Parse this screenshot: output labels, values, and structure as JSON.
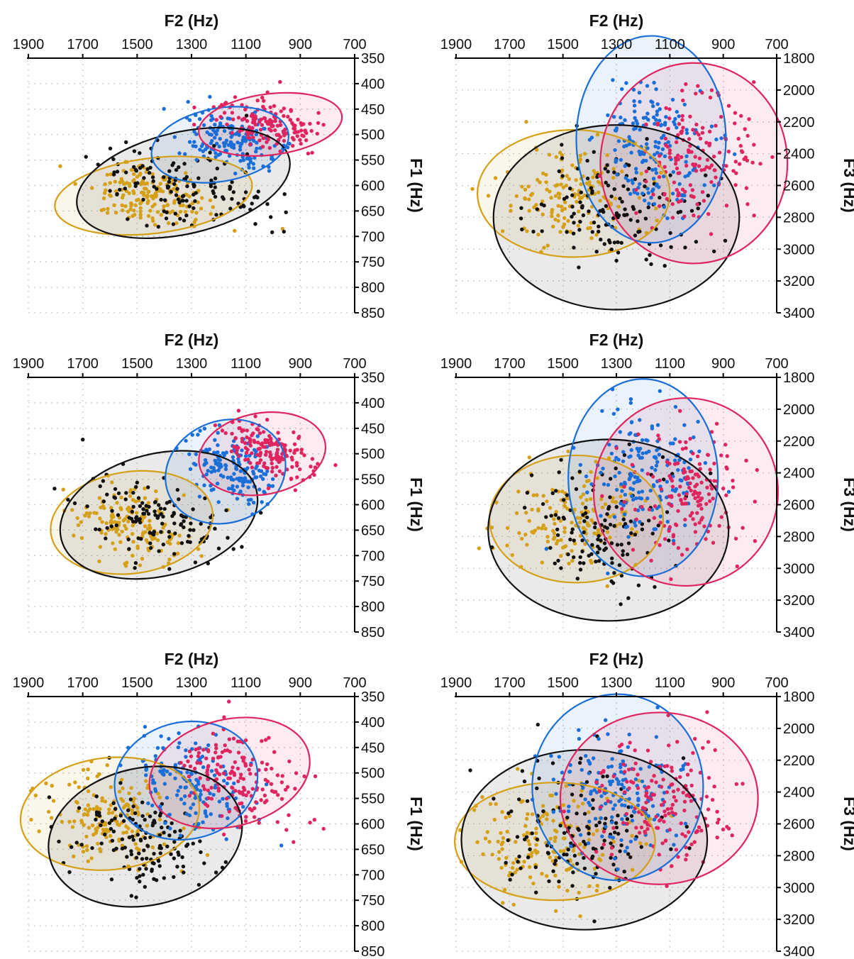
{
  "figure": {
    "rows": 3,
    "cols": 2
  },
  "series_colors": {
    "black": "#111111",
    "orange": "#D4A017",
    "blue": "#1A6ED8",
    "red": "#E0245E"
  },
  "series_order": [
    "orange",
    "black",
    "blue",
    "red"
  ],
  "chart_data": [
    {
      "type": "scatter",
      "xlabel": "F2 (Hz)",
      "ylabel": "F1 (Hz)",
      "xlim": [
        1900,
        700
      ],
      "ylim": [
        350,
        850
      ],
      "xticks": [
        1900,
        1700,
        1500,
        1300,
        1100,
        900,
        700
      ],
      "yticks": [
        350,
        400,
        450,
        500,
        550,
        600,
        650,
        700,
        750,
        800,
        850
      ],
      "grid": true,
      "series": [
        {
          "color_key": "orange",
          "ellipse": {
            "cx": 1440,
            "cy": 620,
            "rx": 365,
            "ry": 74,
            "angle": -7
          },
          "mean_x": 1450,
          "sd_x": 120,
          "mean_y": 620,
          "sd_y": 35,
          "spread_tilt": 0.35,
          "n": 170
        },
        {
          "color_key": "black",
          "ellipse": {
            "cx": 1330,
            "cy": 595,
            "rx": 400,
            "ry": 100,
            "angle": -13
          },
          "mean_x": 1330,
          "sd_x": 150,
          "mean_y": 600,
          "sd_y": 45,
          "spread_tilt": 0.45,
          "n": 140
        },
        {
          "color_key": "blue",
          "ellipse": {
            "cx": 1195,
            "cy": 520,
            "rx": 255,
            "ry": 72,
            "angle": -10
          },
          "mean_x": 1150,
          "sd_x": 90,
          "mean_y": 510,
          "sd_y": 28,
          "spread_tilt": 0.4,
          "n": 170
        },
        {
          "color_key": "red",
          "ellipse": {
            "cx": 1010,
            "cy": 480,
            "rx": 265,
            "ry": 60,
            "angle": -7
          },
          "mean_x": 1020,
          "sd_x": 90,
          "mean_y": 480,
          "sd_y": 25,
          "spread_tilt": 0.4,
          "n": 150
        }
      ]
    },
    {
      "type": "scatter",
      "xlabel": "F2 (Hz)",
      "ylabel": "F3 (Hz)",
      "xlim": [
        1900,
        700
      ],
      "ylim": [
        1800,
        3400
      ],
      "xticks": [
        1900,
        1700,
        1500,
        1300,
        1100,
        900,
        700
      ],
      "yticks": [
        1800,
        2000,
        2200,
        2400,
        2600,
        2800,
        3000,
        3200,
        3400
      ],
      "grid": true,
      "series": [
        {
          "color_key": "orange",
          "ellipse": {
            "cx": 1460,
            "cy": 2650,
            "rx": 360,
            "ry": 400,
            "angle": 0
          },
          "mean_x": 1460,
          "sd_x": 130,
          "mean_y": 2650,
          "sd_y": 150,
          "spread_tilt": 0.0,
          "n": 160
        },
        {
          "color_key": "black",
          "ellipse": {
            "cx": 1300,
            "cy": 2800,
            "rx": 460,
            "ry": 580,
            "angle": 0
          },
          "mean_x": 1300,
          "sd_x": 160,
          "mean_y": 2750,
          "sd_y": 200,
          "spread_tilt": 0.0,
          "n": 140
        },
        {
          "color_key": "blue",
          "ellipse": {
            "cx": 1170,
            "cy": 2310,
            "rx": 280,
            "ry": 650,
            "angle": 0
          },
          "mean_x": 1170,
          "sd_x": 100,
          "mean_y": 2350,
          "sd_y": 220,
          "spread_tilt": 0.0,
          "n": 170
        },
        {
          "color_key": "red",
          "ellipse": {
            "cx": 1010,
            "cy": 2460,
            "rx": 350,
            "ry": 630,
            "angle": 0
          },
          "mean_x": 1010,
          "sd_x": 110,
          "mean_y": 2450,
          "sd_y": 210,
          "spread_tilt": 0.0,
          "n": 160
        }
      ]
    },
    {
      "type": "scatter",
      "xlabel": "F2 (Hz)",
      "ylabel": "F1 (Hz)",
      "xlim": [
        1900,
        700
      ],
      "ylim": [
        350,
        850
      ],
      "xticks": [
        1900,
        1700,
        1500,
        1300,
        1100,
        900,
        700
      ],
      "yticks": [
        350,
        400,
        450,
        500,
        550,
        600,
        650,
        700,
        750,
        800,
        850
      ],
      "grid": true,
      "series": [
        {
          "color_key": "orange",
          "ellipse": {
            "cx": 1520,
            "cy": 635,
            "rx": 300,
            "ry": 100,
            "angle": -8
          },
          "mean_x": 1520,
          "sd_x": 110,
          "mean_y": 640,
          "sd_y": 35,
          "spread_tilt": 0.35,
          "n": 160
        },
        {
          "color_key": "black",
          "ellipse": {
            "cx": 1420,
            "cy": 620,
            "rx": 370,
            "ry": 120,
            "angle": -14
          },
          "mean_x": 1430,
          "sd_x": 130,
          "mean_y": 630,
          "sd_y": 45,
          "spread_tilt": 0.45,
          "n": 130
        },
        {
          "color_key": "blue",
          "ellipse": {
            "cx": 1175,
            "cy": 535,
            "rx": 225,
            "ry": 100,
            "angle": -20
          },
          "mean_x": 1150,
          "sd_x": 80,
          "mean_y": 530,
          "sd_y": 35,
          "spread_tilt": 0.45,
          "n": 160
        },
        {
          "color_key": "red",
          "ellipse": {
            "cx": 1040,
            "cy": 500,
            "rx": 235,
            "ry": 80,
            "angle": -10
          },
          "mean_x": 1010,
          "sd_x": 80,
          "mean_y": 495,
          "sd_y": 28,
          "spread_tilt": 0.4,
          "n": 160
        }
      ]
    },
    {
      "type": "scatter",
      "xlabel": "F2 (Hz)",
      "ylabel": "F3 (Hz)",
      "xlim": [
        1900,
        700
      ],
      "ylim": [
        1800,
        3400
      ],
      "xticks": [
        1900,
        1700,
        1500,
        1300,
        1100,
        900,
        700
      ],
      "yticks": [
        1800,
        2000,
        2200,
        2400,
        2600,
        2800,
        3000,
        3200,
        3400
      ],
      "grid": true,
      "series": [
        {
          "color_key": "orange",
          "ellipse": {
            "cx": 1450,
            "cy": 2690,
            "rx": 325,
            "ry": 400,
            "angle": 0
          },
          "mean_x": 1470,
          "sd_x": 120,
          "mean_y": 2700,
          "sd_y": 150,
          "spread_tilt": 0.0,
          "n": 160
        },
        {
          "color_key": "black",
          "ellipse": {
            "cx": 1330,
            "cy": 2760,
            "rx": 450,
            "ry": 570,
            "angle": 0
          },
          "mean_x": 1350,
          "sd_x": 150,
          "mean_y": 2750,
          "sd_y": 200,
          "spread_tilt": 0.0,
          "n": 130
        },
        {
          "color_key": "blue",
          "ellipse": {
            "cx": 1200,
            "cy": 2430,
            "rx": 280,
            "ry": 620,
            "angle": 0
          },
          "mean_x": 1200,
          "sd_x": 100,
          "mean_y": 2420,
          "sd_y": 210,
          "spread_tilt": 0.0,
          "n": 170
        },
        {
          "color_key": "red",
          "ellipse": {
            "cx": 1040,
            "cy": 2520,
            "rx": 345,
            "ry": 590,
            "angle": 0
          },
          "mean_x": 1020,
          "sd_x": 110,
          "mean_y": 2510,
          "sd_y": 200,
          "spread_tilt": 0.0,
          "n": 160
        }
      ]
    },
    {
      "type": "scatter",
      "xlabel": "F2 (Hz)",
      "ylabel": "F1 (Hz)",
      "xlim": [
        1900,
        700
      ],
      "ylim": [
        350,
        850
      ],
      "xticks": [
        1900,
        1700,
        1500,
        1300,
        1100,
        900,
        700
      ],
      "yticks": [
        350,
        400,
        450,
        500,
        550,
        600,
        650,
        700,
        750,
        800,
        850
      ],
      "grid": true,
      "series": [
        {
          "color_key": "orange",
          "ellipse": {
            "cx": 1600,
            "cy": 580,
            "rx": 330,
            "ry": 110,
            "angle": -6
          },
          "mean_x": 1600,
          "sd_x": 130,
          "mean_y": 590,
          "sd_y": 45,
          "spread_tilt": 0.3,
          "n": 170
        },
        {
          "color_key": "black",
          "ellipse": {
            "cx": 1470,
            "cy": 625,
            "rx": 360,
            "ry": 135,
            "angle": -12
          },
          "mean_x": 1480,
          "sd_x": 140,
          "mean_y": 630,
          "sd_y": 50,
          "spread_tilt": 0.4,
          "n": 140
        },
        {
          "color_key": "blue",
          "ellipse": {
            "cx": 1320,
            "cy": 515,
            "rx": 265,
            "ry": 115,
            "angle": -12
          },
          "mean_x": 1300,
          "sd_x": 110,
          "mean_y": 520,
          "sd_y": 45,
          "spread_tilt": 0.4,
          "n": 160
        },
        {
          "color_key": "red",
          "ellipse": {
            "cx": 1160,
            "cy": 500,
            "rx": 300,
            "ry": 105,
            "angle": -14
          },
          "mean_x": 1140,
          "sd_x": 110,
          "mean_y": 505,
          "sd_y": 45,
          "spread_tilt": 0.4,
          "n": 170
        }
      ]
    },
    {
      "type": "scatter",
      "xlabel": "F2 (Hz)",
      "ylabel": "F3 (Hz)",
      "xlim": [
        1900,
        700
      ],
      "ylim": [
        1800,
        3400
      ],
      "xticks": [
        1900,
        1700,
        1500,
        1300,
        1100,
        900,
        700
      ],
      "yticks": [
        1800,
        2000,
        2200,
        2400,
        2600,
        2800,
        3000,
        3200,
        3400
      ],
      "grid": true,
      "series": [
        {
          "color_key": "orange",
          "ellipse": {
            "cx": 1530,
            "cy": 2710,
            "rx": 375,
            "ry": 370,
            "angle": 0
          },
          "mean_x": 1560,
          "sd_x": 140,
          "mean_y": 2700,
          "sd_y": 160,
          "spread_tilt": 0.0,
          "n": 170
        },
        {
          "color_key": "black",
          "ellipse": {
            "cx": 1420,
            "cy": 2700,
            "rx": 460,
            "ry": 565,
            "angle": 0
          },
          "mean_x": 1430,
          "sd_x": 160,
          "mean_y": 2680,
          "sd_y": 200,
          "spread_tilt": 0.0,
          "n": 140
        },
        {
          "color_key": "blue",
          "ellipse": {
            "cx": 1295,
            "cy": 2370,
            "rx": 320,
            "ry": 585,
            "angle": 0
          },
          "mean_x": 1300,
          "sd_x": 120,
          "mean_y": 2400,
          "sd_y": 200,
          "spread_tilt": 0.0,
          "n": 170
        },
        {
          "color_key": "red",
          "ellipse": {
            "cx": 1140,
            "cy": 2440,
            "rx": 370,
            "ry": 540,
            "angle": 0
          },
          "mean_x": 1130,
          "sd_x": 120,
          "mean_y": 2450,
          "sd_y": 200,
          "spread_tilt": 0.0,
          "n": 170
        }
      ]
    }
  ]
}
